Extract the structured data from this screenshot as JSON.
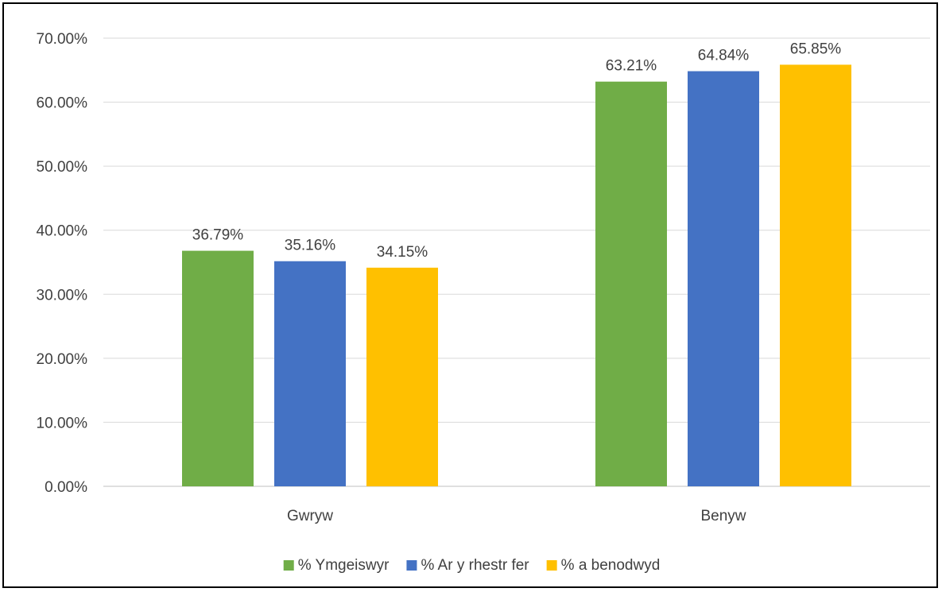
{
  "chart_data": {
    "type": "bar",
    "categories": [
      "Gwryw",
      "Benyw"
    ],
    "series": [
      {
        "name": "% Ymgeiswyr",
        "color": "#70AD47",
        "values": [
          36.79,
          63.21
        ],
        "labels": [
          "36.79%",
          "63.21%"
        ]
      },
      {
        "name": "% Ar y rhestr fer",
        "color": "#4472C4",
        "values": [
          35.16,
          64.84
        ],
        "labels": [
          "35.16%",
          "64.84%"
        ]
      },
      {
        "name": "% a benodwyd",
        "color": "#FFC000",
        "values": [
          34.15,
          65.85
        ],
        "labels": [
          "34.15%",
          "65.85%"
        ]
      }
    ],
    "y_ticks": [
      "0.00%",
      "10.00%",
      "20.00%",
      "30.00%",
      "40.00%",
      "50.00%",
      "60.00%",
      "70.00%"
    ],
    "ylim": [
      0,
      70
    ],
    "title": "",
    "xlabel": "",
    "ylabel": "",
    "grid": true,
    "legend_position": "bottom"
  }
}
